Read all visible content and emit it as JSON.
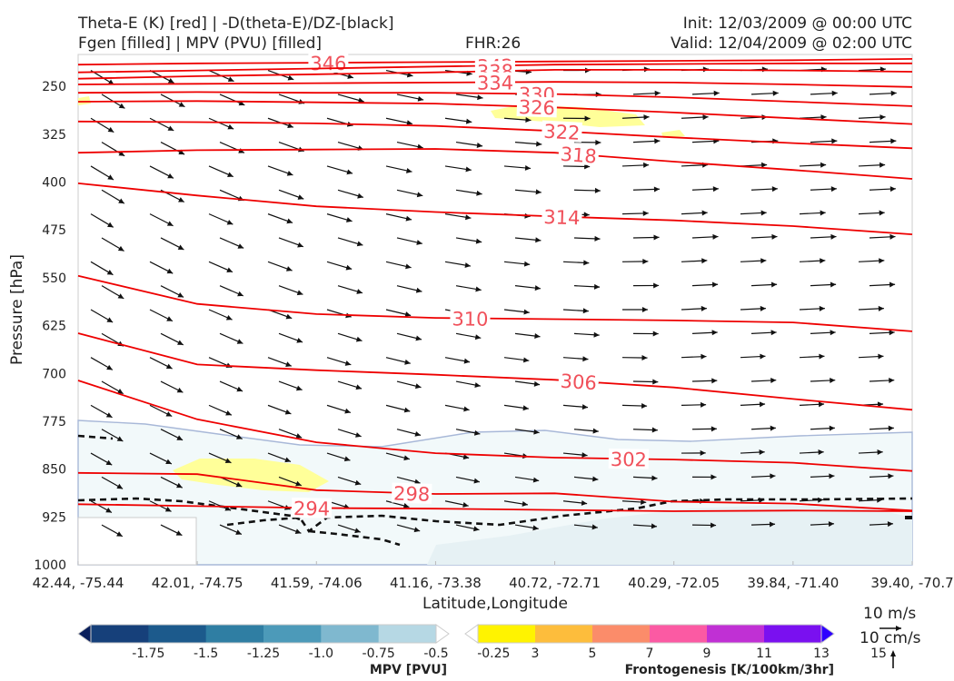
{
  "header": {
    "title_line1": "Theta-E (K) [red] | -D(theta-E)/DZ-[black]",
    "title_line2": "Fgen [filled] | MPV (PVU) [filled]",
    "fhr": "FHR:26",
    "init": "Init: 12/03/2009 @ 00:00 UTC",
    "valid": "Valid: 12/04/2009 @ 02:00 UTC"
  },
  "chart_data": {
    "type": "cross-section",
    "xlabel": "Latitude,Longitude",
    "ylabel": "Pressure [hPa]",
    "ylim": [
      1000,
      200
    ],
    "y_ticks": [
      250,
      325,
      400,
      475,
      550,
      625,
      700,
      775,
      850,
      925,
      1000
    ],
    "x_ticks": [
      "42.44, -75.44",
      "42.01, -74.75",
      "41.59, -74.06",
      "41.16, -73.38",
      "40.72, -72.71",
      "40.29, -72.05",
      "39.84, -71.40",
      "39.40, -70.7"
    ],
    "theta_e_contours": [
      {
        "label": "346",
        "x": 0.3,
        "p": [
          216,
          214,
          213,
          212,
          211,
          210,
          209,
          207
        ]
      },
      {
        "label": "342",
        "x": 0.5,
        "p": [
          228,
          225,
          222,
          219,
          216,
          215,
          214,
          214
        ]
      },
      {
        "label": "338",
        "x": 0.5,
        "p": [
          238,
          234,
          231,
          228,
          224,
          224,
          225,
          227
        ]
      },
      {
        "label": "334",
        "x": 0.5,
        "p": [
          247,
          246,
          245,
          244,
          243,
          244,
          247,
          251
        ]
      },
      {
        "label": "330",
        "x": 0.55,
        "p": [
          260,
          259,
          260,
          260,
          262,
          267,
          274,
          281
        ]
      },
      {
        "label": "326",
        "x": 0.55,
        "p": [
          274,
          273,
          275,
          277,
          283,
          291,
          300,
          309
        ]
      },
      {
        "label": "322",
        "x": 0.58,
        "p": [
          305,
          306,
          308,
          312,
          320,
          330,
          339,
          347
        ]
      },
      {
        "label": "318",
        "x": 0.6,
        "p": [
          354,
          350,
          349,
          348,
          354,
          368,
          381,
          395
        ]
      },
      {
        "label": "314",
        "x": 0.58,
        "p": [
          402,
          421,
          438,
          447,
          454,
          460,
          469,
          482
        ]
      },
      {
        "label": "310",
        "x": 0.47,
        "p": [
          547,
          591,
          607,
          613,
          615,
          617,
          620,
          634
        ]
      },
      {
        "label": "306",
        "x": 0.6,
        "p": [
          637,
          686,
          695,
          702,
          710,
          722,
          740,
          757
        ]
      },
      {
        "label": "302",
        "x": 0.66,
        "p": [
          711,
          772,
          808,
          825,
          832,
          835,
          840,
          853
        ]
      },
      {
        "label": "298",
        "x": 0.4,
        "p": [
          856,
          858,
          883,
          889,
          888,
          901,
          904,
          915
        ]
      },
      {
        "label": "294",
        "x": 0.28,
        "p": [
          905,
          908,
          911,
          912,
          914,
          916,
          915,
          916
        ]
      }
    ],
    "colorbars": [
      {
        "label": "MPV [PVU]",
        "ticks": [
          "-1.75",
          "-1.5",
          "-1.25",
          "-1.0",
          "-0.75",
          "-0.5",
          "-0.25"
        ],
        "colors": [
          "#0a1f5c",
          "#16407a",
          "#1c5a8c",
          "#2f7ea3",
          "#4c9ab9",
          "#7fb8cf",
          "#b6d8e4",
          "#ffffff"
        ]
      },
      {
        "label": "Frontogenesis [K/100km/3hr]",
        "ticks": [
          "3",
          "5",
          "7",
          "9",
          "11",
          "13",
          "15"
        ],
        "colors": [
          "#ffffff",
          "#fff300",
          "#fdbd3c",
          "#fb8c6a",
          "#fb5aa3",
          "#c030d4",
          "#7a10f0",
          "#2e00ff"
        ]
      }
    ],
    "wind_key": {
      "horizontal": "10 m/s",
      "vertical": "10 cm/s"
    }
  }
}
